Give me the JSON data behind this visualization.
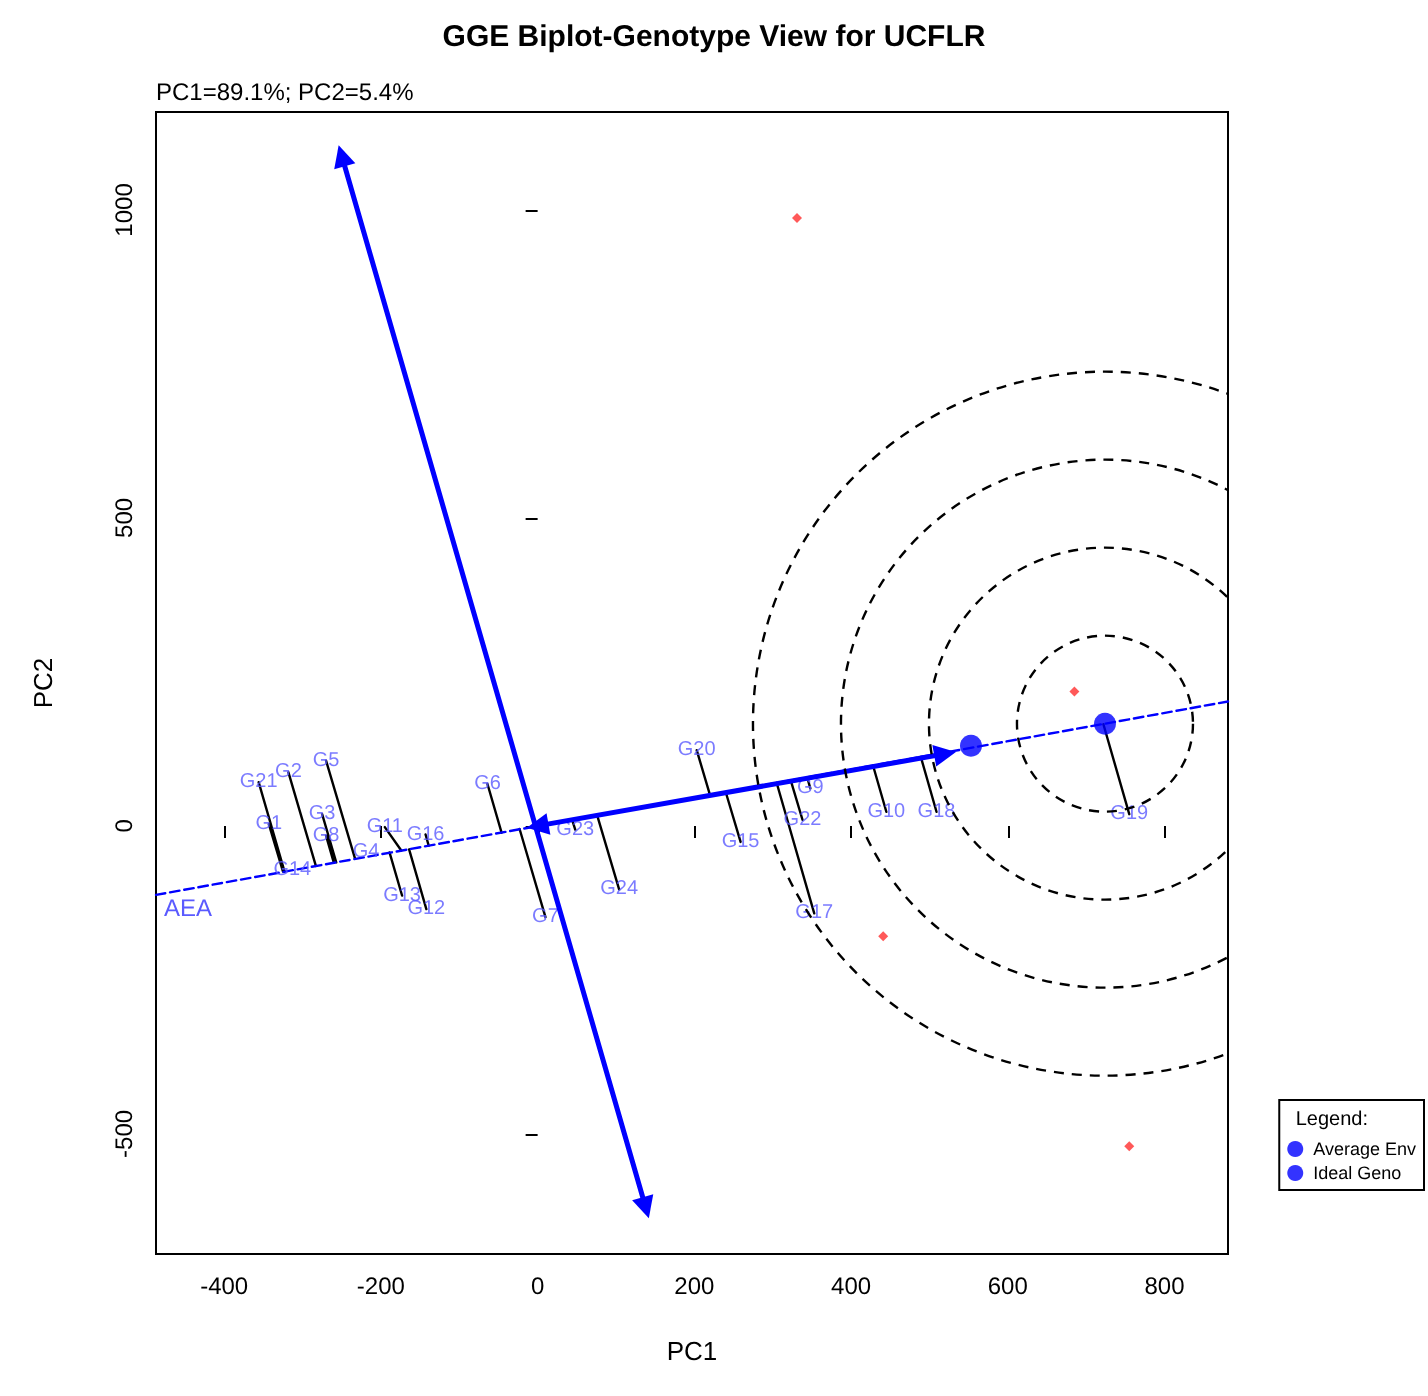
{
  "chart_data": {
    "type": "scatter",
    "title": "GGE Biplot-Genotype View for UCFLR",
    "subtitle": "PC1=89.1%; PC2=5.4%",
    "xlabel": "PC1",
    "ylabel": "PC2",
    "xlim": [
      -487,
      881
    ],
    "ylim": [
      -695,
      1159
    ],
    "xticks": [
      -400,
      -200,
      0,
      200,
      400,
      600,
      800
    ],
    "yticks": [
      -500,
      0,
      500,
      1000
    ],
    "grid": false,
    "legend": "bottom right",
    "legend_title": "Legend:",
    "annotations": [
      "AEA",
      {
        "text": "G21",
        "x": -356,
        "y": 71
      },
      {
        "text": "G2",
        "x": -318,
        "y": 87
      },
      {
        "text": "G5",
        "x": -270,
        "y": 106
      },
      {
        "text": "G1",
        "x": -343,
        "y": 3
      },
      {
        "text": "G14",
        "x": -313,
        "y": -71
      },
      {
        "text": "G3",
        "x": -275,
        "y": 19
      },
      {
        "text": "G8",
        "x": -270,
        "y": -16
      },
      {
        "text": "G4",
        "x": -219,
        "y": -42
      },
      {
        "text": "G11",
        "x": -195,
        "y": -2
      },
      {
        "text": "G16",
        "x": -143,
        "y": -14
      },
      {
        "text": "G13",
        "x": -173,
        "y": -113
      },
      {
        "text": "G12",
        "x": -142,
        "y": -135
      },
      {
        "text": "G6",
        "x": -64,
        "y": 68
      },
      {
        "text": "G7",
        "x": 10,
        "y": -148
      },
      {
        "text": "G23",
        "x": 48,
        "y": -6
      },
      {
        "text": "G24",
        "x": 104,
        "y": -103
      },
      {
        "text": "G20",
        "x": 203,
        "y": 123
      },
      {
        "text": "G15",
        "x": 259,
        "y": -26
      },
      {
        "text": "G9",
        "x": 348,
        "y": 61
      },
      {
        "text": "G22",
        "x": 338,
        "y": 10
      },
      {
        "text": "G17",
        "x": 353,
        "y": -142
      },
      {
        "text": "G10",
        "x": 445,
        "y": 23
      },
      {
        "text": "G18",
        "x": 509,
        "y": 23
      },
      {
        "text": "G19",
        "x": 755,
        "y": 19
      }
    ],
    "series": [
      {
        "type": "line",
        "color": "#000000",
        "line_style": "solid",
        "x": [
          -356,
          -323,
          null,
          -318,
          -283,
          null,
          -270,
          -233,
          null,
          -343,
          -325,
          null,
          -275,
          -257,
          null,
          -270,
          -260,
          null,
          -195,
          -174,
          null,
          -143,
          -139,
          null,
          -173,
          -189,
          null,
          -142,
          -164,
          null,
          -64,
          -46,
          null,
          10,
          -23,
          null,
          48,
          44,
          null,
          104,
          76,
          null,
          203,
          220,
          null,
          259,
          240,
          null,
          348,
          344,
          null,
          338,
          323,
          null,
          353,
          305,
          null,
          445,
          428,
          null,
          509,
          489,
          null,
          755,
          722
        ],
        "values": [
          71,
          -74,
          null,
          87,
          -65,
          null,
          106,
          -53,
          null,
          3,
          -74,
          null,
          19,
          -59,
          null,
          -16,
          -60,
          null,
          -2,
          -40,
          null,
          -14,
          -32,
          null,
          -113,
          -43,
          null,
          -135,
          -38,
          null,
          68,
          -11,
          null,
          -148,
          -5,
          null,
          -6,
          10,
          null,
          -103,
          17,
          null,
          123,
          50,
          null,
          -26,
          55,
          null,
          61,
          79,
          null,
          10,
          74,
          null,
          -142,
          70,
          null,
          23,
          98,
          null,
          23,
          112,
          null,
          19,
          165
        ]
      },
      {
        "type": "line",
        "color": "#0000ff",
        "line_style": "dashed",
        "x": [
          -487,
          881
        ],
        "values": [
          -112,
          202
        ]
      },
      {
        "type": "line",
        "color": "#0000ff",
        "line_style": "solid",
        "marker": "triangle",
        "x": [
          0,
          520
        ],
        "values": [
          0,
          117
        ]
      },
      {
        "type": "line",
        "color": "#0000ff",
        "line_style": "solid",
        "marker": "triangle",
        "x": [
          138,
          -250
        ],
        "values": [
          -620,
          1088
        ]
      },
      {
        "type": "scatter",
        "color": "#ff3030",
        "marker": "diamond",
        "x": [
          331,
          685,
          441,
          755
        ],
        "values": [
          987,
          218,
          -179,
          -520
        ]
      },
      {
        "type": "scatter",
        "name": "Average Env",
        "color": "#0000ff",
        "marker": "circle",
        "x": [
          553
        ],
        "values": [
          130
        ]
      },
      {
        "type": "scatter",
        "name": "Ideal Geno",
        "color": "#0000ff",
        "marker": "circle",
        "x": [
          724
        ],
        "values": [
          166
        ]
      }
    ]
  }
}
